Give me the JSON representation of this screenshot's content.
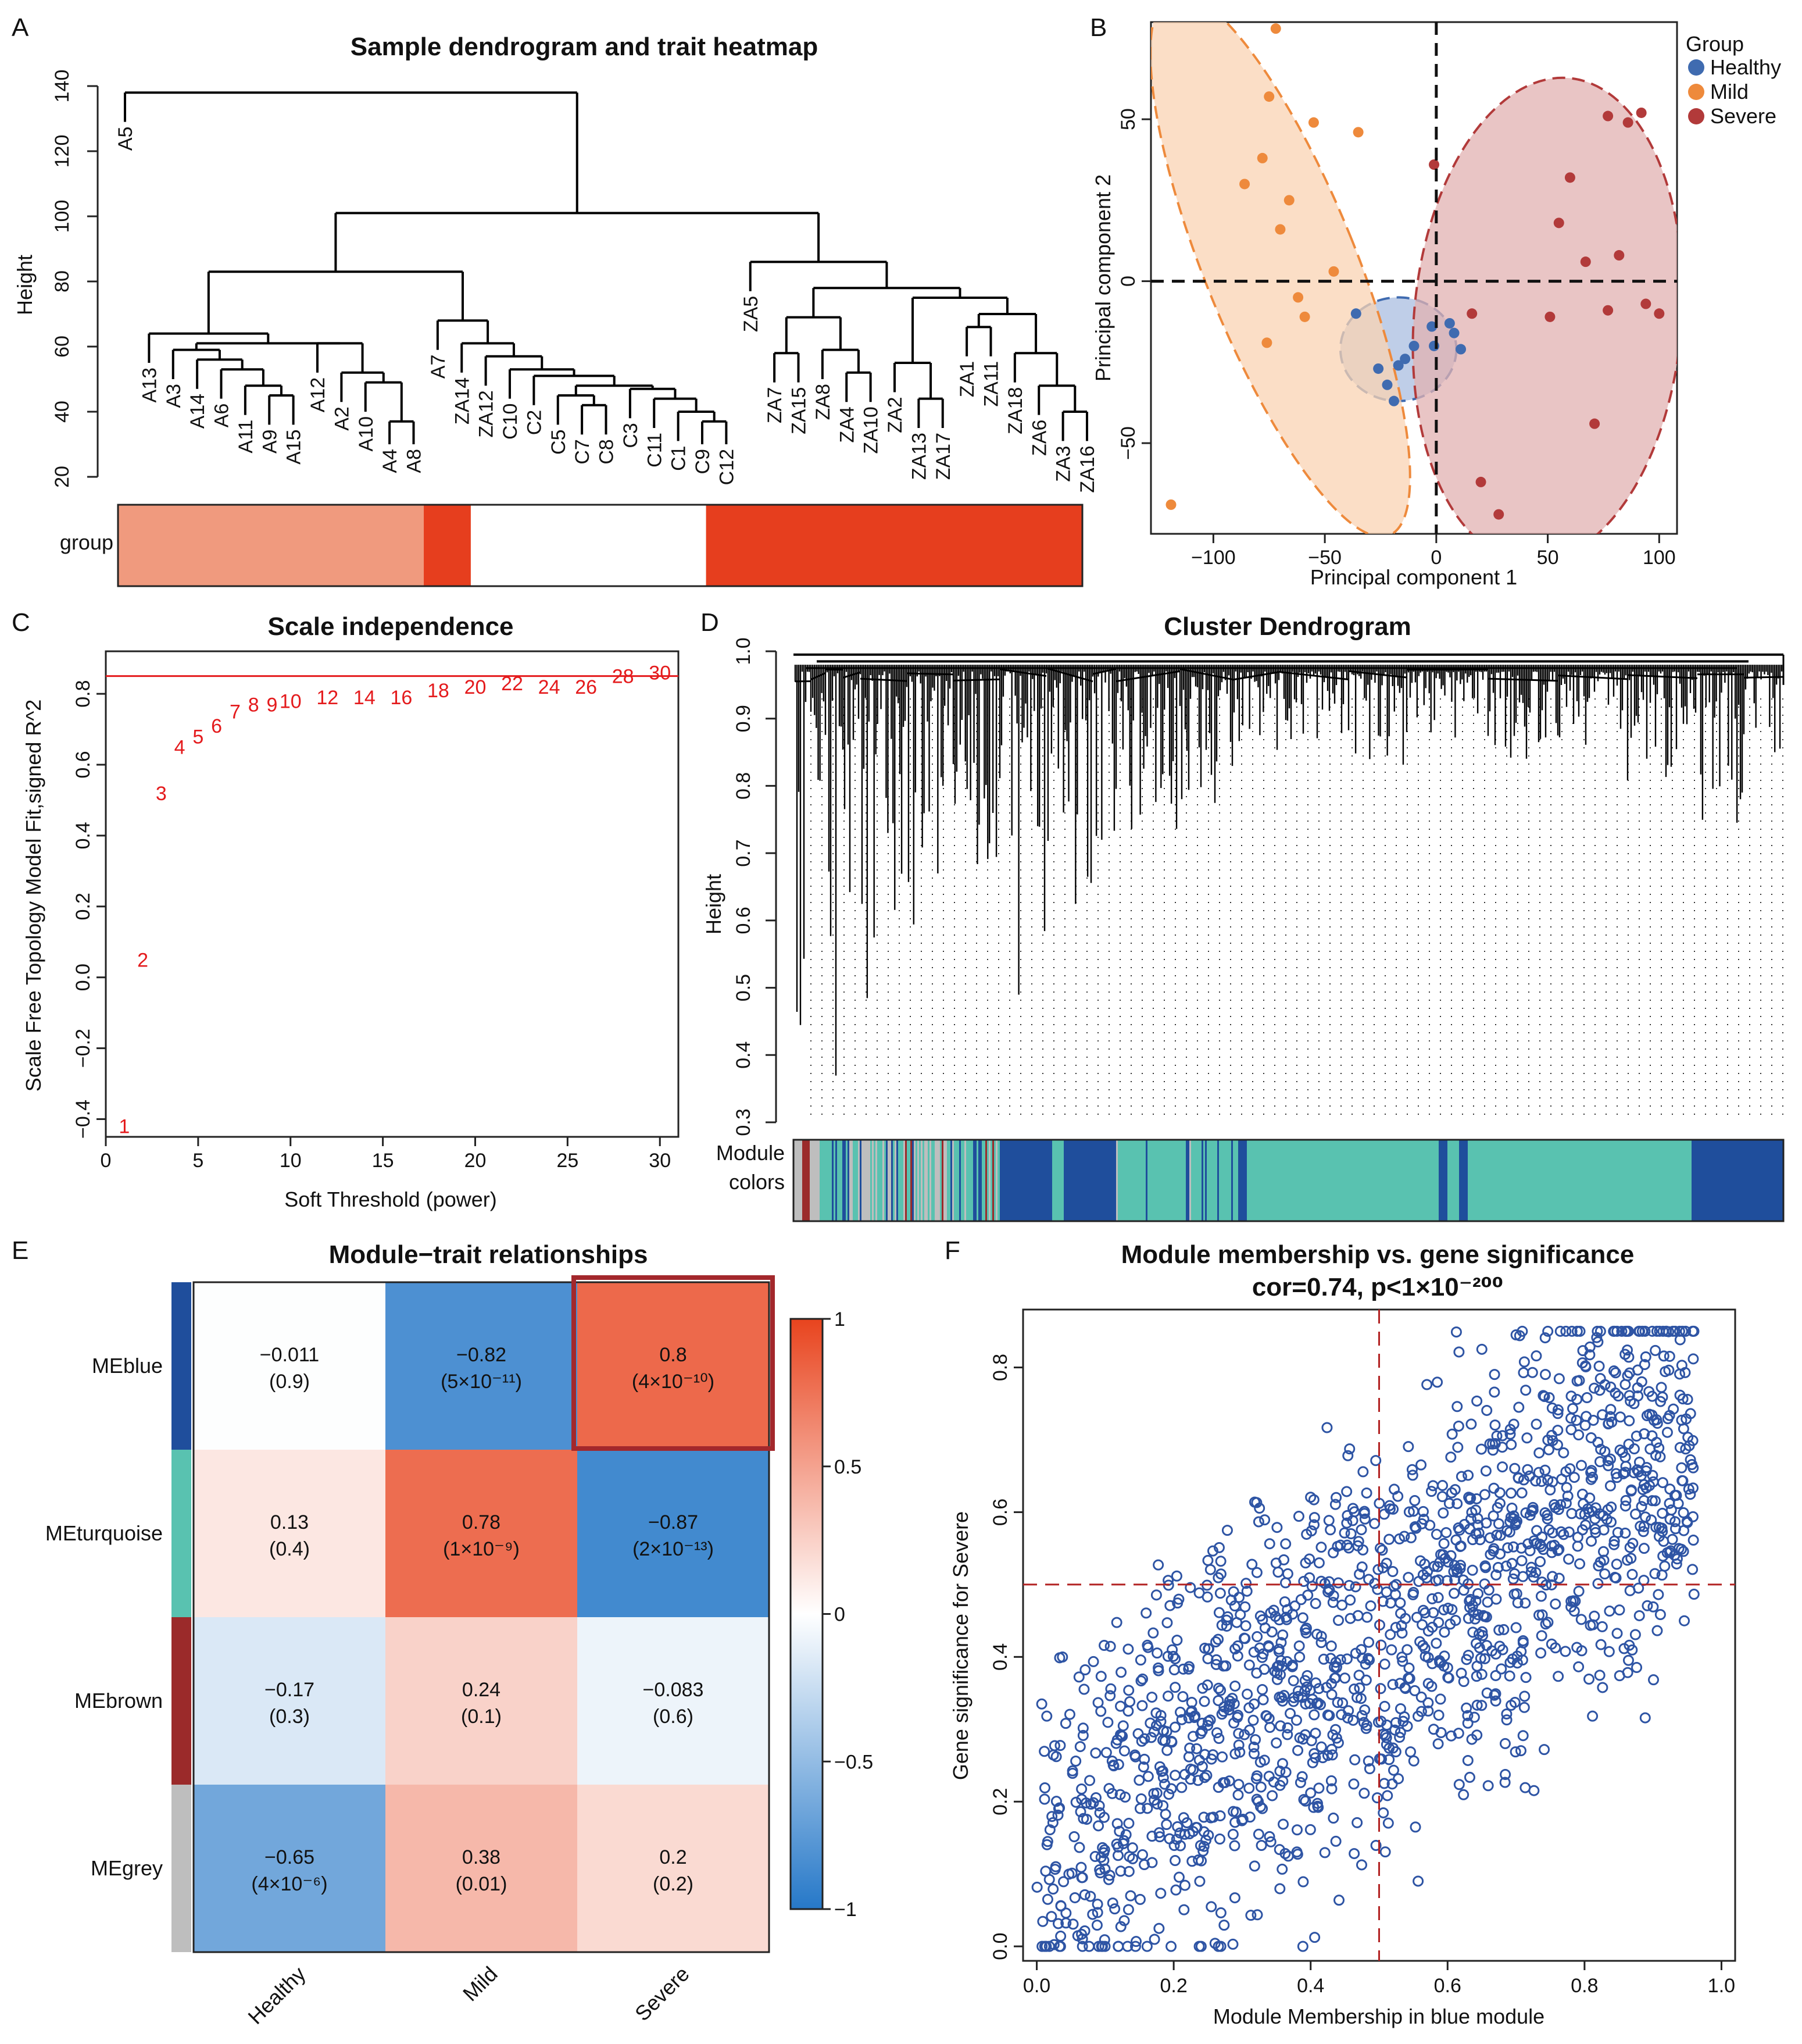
{
  "panels": {
    "A": {
      "letter": "A",
      "title": "Sample dendrogram and trait heatmap",
      "ylabel": "Height",
      "yticks": [
        "20",
        "40",
        "60",
        "80",
        "100",
        "120",
        "140"
      ],
      "ylim": [
        20,
        140
      ],
      "track_label": "group",
      "leaves": [
        "A5",
        "A13",
        "A3",
        "A14",
        "A6",
        "A11",
        "A9",
        "A15",
        "A12",
        "A2",
        "A10",
        "A4",
        "A8",
        "A7",
        "ZA14",
        "ZA12",
        "C10",
        "C2",
        "C5",
        "C7",
        "C8",
        "C3",
        "C11",
        "C1",
        "C9",
        "C12",
        "ZA5",
        "ZA7",
        "ZA15",
        "ZA8",
        "ZA4",
        "ZA10",
        "ZA2",
        "ZA13",
        "ZA17",
        "ZA1",
        "ZA11",
        "ZA18",
        "ZA6",
        "ZA3",
        "ZA16"
      ],
      "group_segments": [
        {
          "name": "Mild",
          "leaves": 13,
          "color": "#F09A7E"
        },
        {
          "name": "Severe",
          "leaves": 2,
          "color": "#E63E1E"
        },
        {
          "name": "Healthy",
          "leaves": 10,
          "color": "#FFFFFF"
        },
        {
          "name": "Severe",
          "leaves": 16,
          "color": "#E63E1E"
        }
      ]
    },
    "B": {
      "letter": "B",
      "xlabel": "Principal component 1",
      "ylabel": "Principal component 2",
      "xticks": [
        "−100",
        "−50",
        "0",
        "50",
        "100"
      ],
      "yticks": [
        "−50",
        "0",
        "50"
      ],
      "legend_title": "Group",
      "groups": [
        {
          "name": "Healthy",
          "color": "#3F6BB0"
        },
        {
          "name": "Mild",
          "color": "#EE8A3C"
        },
        {
          "name": "Severe",
          "color": "#B23A3A"
        }
      ]
    },
    "C": {
      "letter": "C",
      "title": "Scale independence",
      "xlabel": "Soft Threshold (power)",
      "ylabel": "Scale Free Topology Model Fit,signed R^2",
      "xticks": [
        "0",
        "5",
        "10",
        "15",
        "20",
        "25",
        "30"
      ],
      "yticks": [
        "−0.4",
        "−0.2",
        "0.0",
        "0.2",
        "0.4",
        "0.6",
        "0.8"
      ],
      "threshold": 0.85,
      "points_label_color": "#E41A1C"
    },
    "D": {
      "letter": "D",
      "title": "Cluster Dendrogram",
      "ylabel": "Height",
      "yticks": [
        "0.3",
        "0.4",
        "0.5",
        "0.6",
        "0.7",
        "0.8",
        "0.9",
        "1.0"
      ],
      "track_label_1": "Module",
      "track_label_2": "colors"
    },
    "E": {
      "letter": "E",
      "title": "Module−trait relationships",
      "colorbar_ticks": [
        "1",
        "0.5",
        "0",
        "−0.5",
        "−1"
      ],
      "highlight": "MEblue / Severe"
    },
    "F": {
      "letter": "F",
      "title": "Module membership vs. gene significance",
      "subtitle": "cor=0.74, p<1×10⁻²⁰⁰",
      "xlabel": "Module Membership in blue module",
      "ylabel": "Gene significance for Severe",
      "xticks": [
        "0.0",
        "0.2",
        "0.4",
        "0.6",
        "0.8",
        "1.0"
      ],
      "yticks": [
        "0.0",
        "0.2",
        "0.4",
        "0.6",
        "0.8"
      ],
      "cutoff_x": 0.5,
      "cutoff_y": 0.5
    }
  },
  "chart_data": [
    {
      "type": "scatter",
      "panel": "B",
      "title": "",
      "xlabel": "Principal component 1",
      "ylabel": "Principal component 2",
      "xlim": [
        -128,
        108
      ],
      "ylim": [
        -78,
        80
      ],
      "series": [
        {
          "name": "Healthy",
          "points": [
            [
              -36,
              -10
            ],
            [
              -26,
              -27
            ],
            [
              -22,
              -32
            ],
            [
              -19,
              -37
            ],
            [
              -17,
              -26
            ],
            [
              -14,
              -24
            ],
            [
              -10,
              -20
            ],
            [
              -2,
              -14
            ],
            [
              -1,
              -20
            ],
            [
              6,
              -13
            ],
            [
              11,
              -21
            ],
            [
              8,
              -16
            ]
          ]
        },
        {
          "name": "Mild",
          "points": [
            [
              -72,
              78
            ],
            [
              -75,
              57
            ],
            [
              -55,
              49
            ],
            [
              -35,
              46
            ],
            [
              -78,
              38
            ],
            [
              -86,
              30
            ],
            [
              -66,
              25
            ],
            [
              -70,
              16
            ],
            [
              -46,
              3
            ],
            [
              -62,
              -5
            ],
            [
              -59,
              -11
            ],
            [
              -76,
              -19
            ],
            [
              -119,
              -69
            ]
          ]
        },
        {
          "name": "Severe",
          "points": [
            [
              -1,
              36
            ],
            [
              92,
              52
            ],
            [
              77,
              51
            ],
            [
              86,
              49
            ],
            [
              60,
              32
            ],
            [
              55,
              18
            ],
            [
              67,
              6
            ],
            [
              82,
              8
            ],
            [
              100,
              -10
            ],
            [
              77,
              -9
            ],
            [
              94,
              -7
            ],
            [
              51,
              -11
            ],
            [
              16,
              -10
            ],
            [
              71,
              -44
            ],
            [
              20,
              -62
            ],
            [
              28,
              -72
            ]
          ]
        }
      ],
      "ellipses": [
        {
          "group": "Healthy",
          "cx": -17,
          "cy": -21,
          "rx": 26,
          "ry": 16,
          "angle": 0
        },
        {
          "group": "Mild",
          "cx": -70,
          "cy": 5,
          "rx": 34,
          "ry": 90,
          "angle": 22
        },
        {
          "group": "Severe",
          "cx": 50,
          "cy": -12,
          "rx": 60,
          "ry": 75,
          "angle": -5
        }
      ]
    },
    {
      "type": "scatter",
      "panel": "C",
      "title": "Scale independence",
      "xlabel": "Soft Threshold (power)",
      "ylabel": "Scale Free Topology Model Fit,signed R^2",
      "xlim": [
        0,
        31
      ],
      "ylim": [
        -0.45,
        0.92
      ],
      "x": [
        1,
        2,
        3,
        4,
        5,
        6,
        7,
        8,
        9,
        10,
        12,
        14,
        16,
        18,
        20,
        22,
        24,
        26,
        28,
        30
      ],
      "y": [
        -0.42,
        0.05,
        0.52,
        0.65,
        0.68,
        0.71,
        0.75,
        0.77,
        0.77,
        0.78,
        0.79,
        0.79,
        0.79,
        0.81,
        0.82,
        0.83,
        0.82,
        0.82,
        0.85,
        0.86
      ],
      "point_labels": [
        "1",
        "2",
        "3",
        "4",
        "5",
        "6",
        "7",
        "8",
        "9",
        "10",
        "12",
        "14",
        "16",
        "18",
        "20",
        "22",
        "24",
        "26",
        "28",
        "30"
      ],
      "hline": 0.85
    },
    {
      "type": "heatmap",
      "panel": "E",
      "title": "Module−trait relationships",
      "rows": [
        "MEblue",
        "MEturquoise",
        "MEbrown",
        "MEgrey"
      ],
      "row_colors": [
        "#1F4E9C",
        "#59C2B0",
        "#9B2A2A",
        "#BEBEBE"
      ],
      "columns": [
        "Healthy",
        "Mild",
        "Severe"
      ],
      "values": [
        [
          -0.011,
          -0.82,
          0.8
        ],
        [
          0.13,
          0.78,
          -0.87
        ],
        [
          -0.17,
          0.24,
          -0.083
        ],
        [
          -0.65,
          0.38,
          0.2
        ]
      ],
      "labels": [
        [
          "−0.011",
          "−0.82",
          "0.8"
        ],
        [
          "0.13",
          "0.78",
          "−0.87"
        ],
        [
          "−0.17",
          "0.24",
          "−0.083"
        ],
        [
          "−0.65",
          "0.38",
          "0.2"
        ]
      ],
      "pvalues": [
        [
          "(0.9)",
          "(5×10⁻¹¹)",
          "(4×10⁻¹⁰)"
        ],
        [
          "(0.4)",
          "(1×10⁻⁹)",
          "(2×10⁻¹³)"
        ],
        [
          "(0.3)",
          "(0.1)",
          "(0.6)"
        ],
        [
          "(4×10⁻⁶)",
          "(0.01)",
          "(0.2)"
        ]
      ],
      "range": [
        -1,
        1
      ]
    },
    {
      "type": "scatter",
      "panel": "F",
      "title": "Module membership vs. gene significance",
      "xlabel": "Module Membership in blue module",
      "ylabel": "Gene significance for Severe",
      "xlim": [
        -0.02,
        1.02
      ],
      "ylim": [
        -0.02,
        0.88
      ],
      "correlation": 0.74,
      "n_points": 2000,
      "description": "cloud of blue open circles rising from lower-left to upper-right"
    }
  ]
}
